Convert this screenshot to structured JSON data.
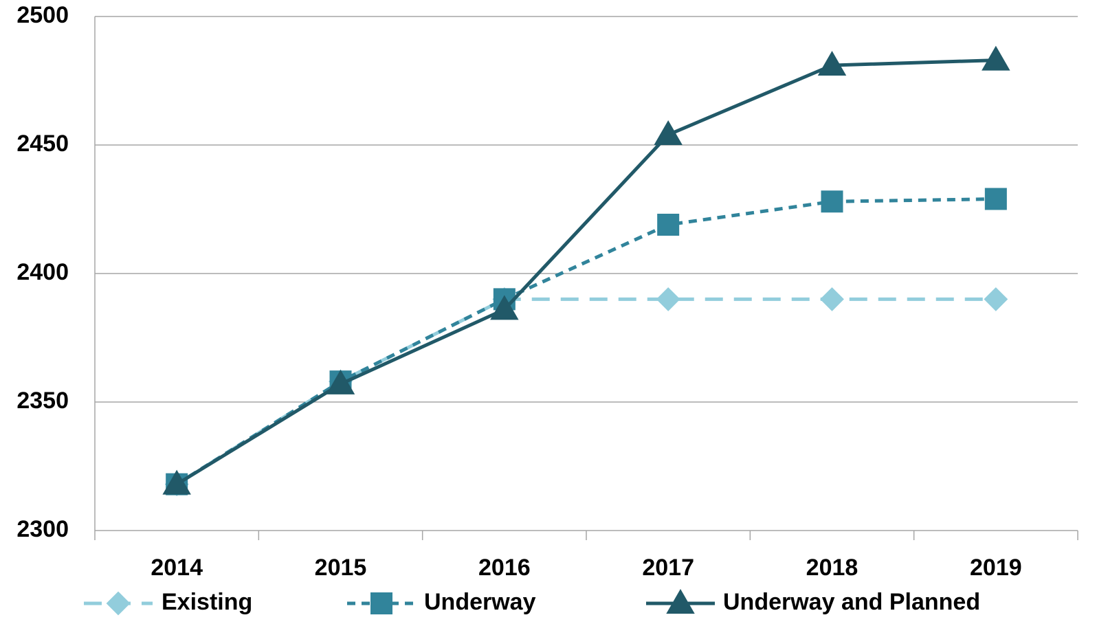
{
  "chart_data": {
    "type": "line",
    "categories": [
      "2014",
      "2015",
      "2016",
      "2017",
      "2018",
      "2019"
    ],
    "series": [
      {
        "name": "Existing",
        "color": "#92cddc",
        "line_style": "long-dash",
        "marker": "diamond",
        "values": [
          2318,
          2358,
          2390,
          2390,
          2390,
          2390
        ]
      },
      {
        "name": "Underway",
        "color": "#31849b",
        "line_style": "short-dash",
        "marker": "square",
        "values": [
          2318,
          2358,
          2390,
          2419,
          2428,
          2429
        ]
      },
      {
        "name": "Underway and Planned",
        "color": "#215968",
        "line_style": "solid",
        "marker": "triangle",
        "values": [
          2318,
          2357,
          2386,
          2454,
          2481,
          2483
        ]
      }
    ],
    "ylim": [
      2300,
      2500
    ],
    "yticks": [
      2300,
      2350,
      2400,
      2450,
      2500
    ],
    "grid": true,
    "legend": "bottom"
  }
}
